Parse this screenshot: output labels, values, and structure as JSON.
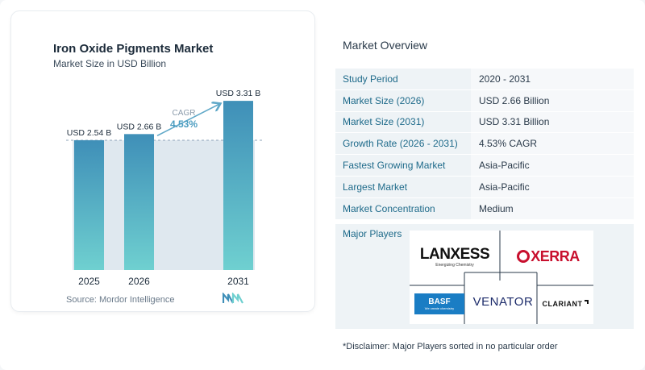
{
  "chart": {
    "title": "Iron Oxide Pigments Market",
    "subtitle": "Market Size in USD Billion",
    "source": "Source:  Mordor Intelligence"
  },
  "chart_data": {
    "type": "bar",
    "categories": [
      "2025",
      "2026",
      "2031"
    ],
    "values": [
      2.54,
      2.66,
      3.31
    ],
    "value_labels": [
      "USD 2.54 B",
      "USD 2.66 B",
      "USD 3.31 B"
    ],
    "annotation": {
      "label": "CAGR",
      "value": "4.53%"
    },
    "title": "Iron Oxide Pigments Market",
    "subtitle": "Market Size in USD Billion",
    "ylim": [
      0,
      3.5
    ],
    "grid": false,
    "colors": {
      "bar_top": "#3f8fb8",
      "bar_bottom": "#6fd0d0",
      "arrow": "#5fa8c8",
      "dashed": "#8fa4b8",
      "band": "#dfe8ef"
    }
  },
  "overview": {
    "title": "Market Overview",
    "rows": [
      {
        "label": "Study Period",
        "value": "2020 - 2031"
      },
      {
        "label": "Market Size (2026)",
        "value": "USD 2.66 Billion"
      },
      {
        "label": "Market Size (2031)",
        "value": "USD 3.31 Billion"
      },
      {
        "label": "Growth Rate (2026 - 2031)",
        "value": "4.53% CAGR"
      },
      {
        "label": "Fastest Growing Market",
        "value": "Asia-Pacific"
      },
      {
        "label": "Largest Market",
        "value": "Asia-Pacific"
      },
      {
        "label": "Market Concentration",
        "value": "Medium"
      }
    ],
    "players_label": "Major Players",
    "players": {
      "lanxess": {
        "name": "LANXESS",
        "tag": "Energizing Chemistry"
      },
      "oxerra": {
        "name": "XERRA"
      },
      "basf": {
        "name": "BASF",
        "tag": "We create chemistry"
      },
      "venator": {
        "name": "VENATOR"
      },
      "clariant": {
        "name": "CLARIANT"
      }
    },
    "disclaimer": "*Disclaimer: Major Players sorted in no particular order"
  }
}
